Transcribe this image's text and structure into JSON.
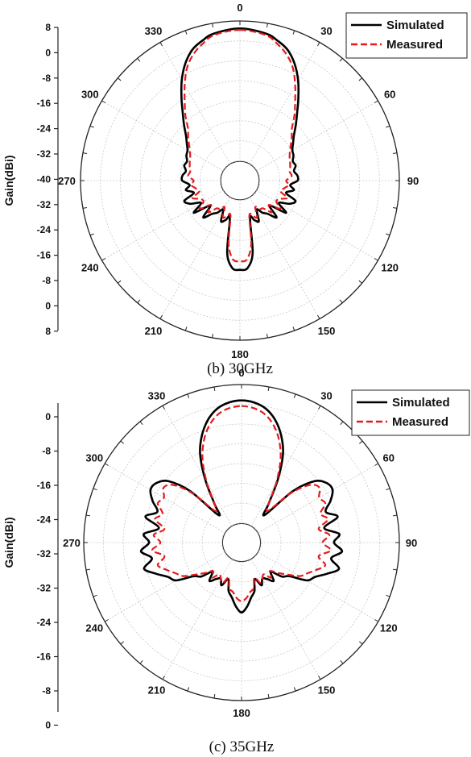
{
  "chart_data": [
    {
      "type": "polar-line",
      "caption": "(b) 30GHz",
      "ylabel": "Gain(dBi)",
      "radial_range": [
        -40,
        8
      ],
      "radial_scale_ticks": [
        "8",
        "0",
        "-8",
        "-16",
        "-24",
        "-32",
        "-40",
        "-32",
        "-24",
        "-16",
        "-8",
        "0",
        "8"
      ],
      "angle_ticks": [
        "0",
        "30",
        "60",
        "90",
        "120",
        "150",
        "180",
        "210",
        "240",
        "270",
        "300",
        "330"
      ],
      "legend": {
        "placement": "top-right",
        "entries": [
          "Simulated",
          "Measured"
        ]
      },
      "grid": true,
      "series": [
        {
          "name": "Simulated",
          "color": "#000000",
          "style": "solid",
          "angles": [
            0,
            10,
            15,
            20,
            25,
            30,
            35,
            40,
            45,
            50,
            55,
            60,
            65,
            70,
            75,
            80,
            85,
            90,
            95,
            100,
            105,
            110,
            115,
            120,
            125,
            130,
            135,
            140,
            145,
            150,
            155,
            160,
            165,
            170,
            175,
            180,
            185,
            190,
            195,
            200,
            205,
            210,
            215,
            220,
            225,
            230,
            235,
            240,
            245,
            250,
            255,
            260,
            265,
            270,
            275,
            280,
            285,
            290,
            295,
            300,
            305,
            310,
            315,
            320,
            325,
            330,
            335,
            340,
            345,
            350
          ],
          "values": [
            6.5,
            5.5,
            4.0,
            2.0,
            -1.5,
            -6.0,
            -11.0,
            -15.5,
            -19.0,
            -22.0,
            -24.0,
            -25.5,
            -26.0,
            -27.0,
            -26.5,
            -27.5,
            -26.5,
            -26.5,
            -29.0,
            -27.5,
            -30.0,
            -26.0,
            -27.5,
            -31.0,
            -27.0,
            -33.0,
            -28.5,
            -31.5,
            -33.0,
            -35.0,
            -31.0,
            -32.0,
            -33.0,
            -21.0,
            -16.0,
            -15.5,
            -16.0,
            -21.0,
            -33.0,
            -32.0,
            -31.0,
            -35.0,
            -33.0,
            -31.5,
            -28.5,
            -33.0,
            -27.0,
            -31.0,
            -27.5,
            -26.0,
            -30.0,
            -27.5,
            -29.0,
            -26.5,
            -26.5,
            -27.5,
            -26.5,
            -27.0,
            -26.0,
            -25.5,
            -24.0,
            -22.0,
            -19.0,
            -15.5,
            -11.0,
            -6.0,
            -1.5,
            2.0,
            4.0,
            5.5
          ]
        },
        {
          "name": "Measured",
          "color": "#e41a1c",
          "style": "dashed",
          "angles": [
            0,
            10,
            15,
            20,
            25,
            30,
            35,
            40,
            45,
            50,
            55,
            60,
            65,
            70,
            75,
            80,
            85,
            90,
            95,
            100,
            105,
            110,
            115,
            120,
            125,
            130,
            135,
            140,
            145,
            150,
            155,
            160,
            165,
            170,
            175,
            180,
            185,
            190,
            195,
            200,
            205,
            210,
            215,
            220,
            225,
            230,
            235,
            240,
            245,
            250,
            255,
            260,
            265,
            270,
            275,
            280,
            285,
            290,
            295,
            300,
            305,
            310,
            315,
            320,
            325,
            330,
            335,
            340,
            345,
            350
          ],
          "values": [
            6.0,
            5.0,
            3.0,
            0.5,
            -3.0,
            -8.0,
            -13.0,
            -17.0,
            -21.0,
            -23.0,
            -25.0,
            -26.5,
            -27.5,
            -28.0,
            -28.5,
            -29.0,
            -28.5,
            -30.5,
            -29.5,
            -31.0,
            -32.0,
            -29.0,
            -31.5,
            -32.0,
            -29.5,
            -33.5,
            -31.0,
            -34.0,
            -34.5,
            -36.0,
            -32.5,
            -33.5,
            -34.0,
            -24.0,
            -19.0,
            -18.5,
            -19.0,
            -24.0,
            -34.0,
            -33.5,
            -32.5,
            -36.0,
            -34.5,
            -34.0,
            -31.0,
            -33.5,
            -29.5,
            -32.0,
            -31.5,
            -29.0,
            -32.0,
            -31.0,
            -29.5,
            -30.5,
            -28.5,
            -29.0,
            -28.5,
            -28.0,
            -27.5,
            -26.5,
            -25.0,
            -23.0,
            -21.0,
            -17.0,
            -13.0,
            -8.0,
            -3.0,
            0.5,
            3.0,
            5.0
          ]
        }
      ]
    },
    {
      "type": "polar-line",
      "caption": "(c) 35GHz",
      "ylabel": "Gain(dBi)",
      "radial_range": [
        -40,
        8
      ],
      "radial_scale_ticks": [
        "0",
        "-8",
        "-16",
        "-24",
        "-32",
        "-32",
        "-24",
        "-16",
        "-8",
        "0"
      ],
      "angle_ticks": [
        "0",
        "30",
        "60",
        "90",
        "120",
        "150",
        "180",
        "210",
        "240",
        "270",
        "300",
        "330"
      ],
      "legend": {
        "placement": "top-right",
        "entries": [
          "Simulated",
          "Measured"
        ]
      },
      "grid": true,
      "series": [
        {
          "name": "Simulated",
          "color": "#000000",
          "style": "solid",
          "angles": [
            0,
            5,
            10,
            15,
            20,
            25,
            30,
            35,
            40,
            45,
            50,
            55,
            60,
            65,
            70,
            75,
            80,
            85,
            90,
            95,
            100,
            105,
            110,
            115,
            120,
            125,
            130,
            135,
            140,
            145,
            150,
            155,
            160,
            165,
            170,
            175,
            180,
            185,
            190,
            195,
            200,
            205,
            210,
            215,
            220,
            225,
            230,
            235,
            240,
            245,
            250,
            255,
            260,
            265,
            270,
            275,
            280,
            285,
            290,
            295,
            300,
            305,
            310,
            315,
            320,
            325,
            330,
            335,
            340,
            345,
            350,
            355
          ],
          "values": [
            3.5,
            3.0,
            1.5,
            -1.5,
            -6.0,
            -12.0,
            -21.0,
            -30.0,
            -34.0,
            -21.0,
            -13.0,
            -10.0,
            -9.5,
            -12.0,
            -15.0,
            -11.5,
            -17.0,
            -12.0,
            -14.0,
            -11.0,
            -14.5,
            -11.0,
            -14.5,
            -18.0,
            -20.0,
            -26.0,
            -28.0,
            -32.0,
            -29.0,
            -31.0,
            -32.0,
            -30.0,
            -33.0,
            -29.0,
            -27.0,
            -24.0,
            -22.0,
            -24.0,
            -27.0,
            -29.0,
            -33.0,
            -30.0,
            -32.0,
            -31.0,
            -29.0,
            -32.0,
            -28.0,
            -26.0,
            -20.0,
            -18.0,
            -14.5,
            -11.0,
            -14.5,
            -11.0,
            -14.0,
            -12.0,
            -17.0,
            -11.5,
            -15.0,
            -12.0,
            -9.5,
            -10.0,
            -13.0,
            -21.0,
            -34.0,
            -30.0,
            -21.0,
            -12.0,
            -6.0,
            -1.5,
            1.5,
            3.0
          ]
        },
        {
          "name": "Measured",
          "color": "#e41a1c",
          "style": "dashed",
          "angles": [
            0,
            5,
            10,
            15,
            20,
            25,
            30,
            35,
            40,
            45,
            50,
            55,
            60,
            65,
            70,
            75,
            80,
            85,
            90,
            95,
            100,
            105,
            110,
            115,
            120,
            125,
            130,
            135,
            140,
            145,
            150,
            155,
            160,
            165,
            170,
            175,
            180,
            185,
            190,
            195,
            200,
            205,
            210,
            215,
            220,
            225,
            230,
            235,
            240,
            245,
            250,
            255,
            260,
            265,
            270,
            275,
            280,
            285,
            290,
            295,
            300,
            305,
            310,
            315,
            320,
            325,
            330,
            335,
            340,
            345,
            350,
            355
          ],
          "values": [
            1.5,
            1.0,
            -0.5,
            -3.5,
            -8.0,
            -14.0,
            -22.0,
            -30.0,
            -32.0,
            -22.0,
            -15.0,
            -13.0,
            -15.0,
            -14.0,
            -17.0,
            -15.0,
            -19.0,
            -15.5,
            -18.0,
            -15.0,
            -19.0,
            -16.0,
            -18.5,
            -21.0,
            -23.0,
            -27.0,
            -30.0,
            -32.5,
            -30.5,
            -33.0,
            -32.0,
            -31.0,
            -33.5,
            -30.0,
            -29.0,
            -27.0,
            -26.0,
            -27.0,
            -29.0,
            -30.0,
            -33.5,
            -31.0,
            -32.0,
            -33.0,
            -30.5,
            -32.5,
            -30.0,
            -27.0,
            -23.0,
            -21.0,
            -18.5,
            -16.0,
            -19.0,
            -15.0,
            -18.0,
            -15.5,
            -19.0,
            -15.0,
            -17.0,
            -14.0,
            -15.0,
            -13.0,
            -15.0,
            -22.0,
            -32.0,
            -30.0,
            -22.0,
            -14.0,
            -8.0,
            -3.5,
            -0.5,
            1.0
          ]
        }
      ]
    }
  ]
}
